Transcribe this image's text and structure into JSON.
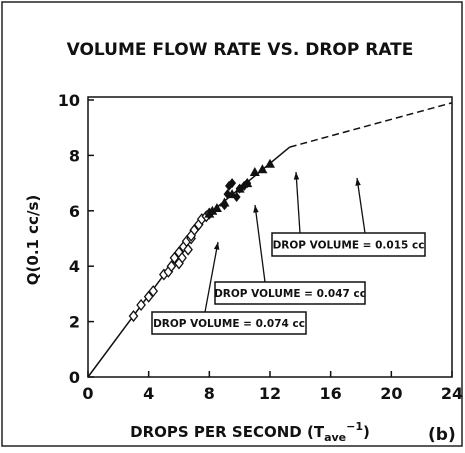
{
  "chart_data": {
    "type": "scatter",
    "title": "VOLUME FLOW RATE VS. DROP RATE",
    "y_label": "Q(0.1 cc/s)",
    "x_label": {
      "text": "DROPS PER SECOND (T",
      "sub": "ave",
      "sup": "−1",
      "close": ")"
    },
    "panel_label": "(b)",
    "xlim": [
      0,
      24
    ],
    "ylim": [
      0,
      10
    ],
    "xticks": [
      0,
      4,
      8,
      12,
      16,
      20,
      24
    ],
    "yticks": [
      0,
      2,
      4,
      6,
      8,
      10
    ],
    "grid": false,
    "series": [
      {
        "marker": "open-diamond",
        "color": "#111111",
        "x": [
          3,
          3.5,
          4,
          4.3,
          5,
          5.3,
          5.5,
          5.7,
          6,
          6.2,
          6.3,
          6.5,
          6.8,
          6.6,
          7,
          7.3,
          7.5,
          7.8,
          8,
          6,
          6.8
        ],
        "values": [
          2.2,
          2.6,
          2.9,
          3.1,
          3.7,
          3.8,
          4.0,
          4.3,
          4.5,
          4.3,
          4.7,
          4.9,
          5.0,
          4.6,
          5.3,
          5.5,
          5.7,
          5.8,
          5.9,
          4.1,
          5.1
        ]
      },
      {
        "marker": "filled-diamond",
        "color": "#111111",
        "x": [
          9,
          9.2,
          9.5,
          10,
          10.3,
          9.8,
          10.5,
          9.3
        ],
        "values": [
          6.2,
          6.6,
          7.0,
          6.8,
          6.9,
          6.5,
          7.0,
          6.9
        ]
      },
      {
        "marker": "filled-triangle",
        "color": "#111111",
        "x": [
          8,
          8.5,
          9,
          9.5,
          10,
          10.5,
          11,
          11.5,
          12,
          8.2
        ],
        "values": [
          5.9,
          6.1,
          6.3,
          6.6,
          6.8,
          7.0,
          7.4,
          7.5,
          7.7,
          6.0
        ]
      }
    ],
    "lines": [
      {
        "style": "solid",
        "x": [
          0,
          8,
          13.3
        ],
        "values": [
          0,
          5.9,
          8.3
        ]
      },
      {
        "style": "dashed",
        "x": [
          13.3,
          24
        ],
        "values": [
          8.3,
          9.9
        ]
      }
    ],
    "annotations": [
      "DROP VOLUME = 0.015 cc",
      "DROP VOLUME = 0.047 cc",
      "DROP VOLUME = 0.074 cc"
    ]
  }
}
